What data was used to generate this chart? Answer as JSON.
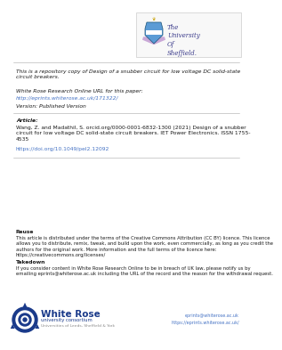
{
  "bg_color": "#ffffff",
  "border_color": "#cccccc",
  "text_color": "#1a1a1a",
  "link_color": "#4472c4",
  "gray_text": "#555555",
  "title_text": "This is a repository copy of Design of a snubber circuit for low voltage DC solid-state\ncircuit breakers.",
  "wrro_label": "White Rose Research Online URL for this paper:",
  "wrro_url": "http://eprints.whiterose.ac.uk/171322/",
  "version_label": "Version: Published Version",
  "article_label": "Article:",
  "citation_line1": "Wang, Z. and Madathil, S. orcid.org/0000-0001-6832-1300 (2021) Design of a snubber",
  "citation_line2": "circuit for low voltage DC solid-state circuit breakers. IET Power Electronics. ISSN 1755-",
  "citation_line3": "4535",
  "doi": "https://doi.org/10.1049/pel2.12092",
  "reuse_label": "Reuse",
  "reuse_line1": "This article is distributed under the terms of the Creative Commons Attribution (CC BY) licence. This licence",
  "reuse_line2": "allows you to distribute, remix, tweak, and build upon the work, even commercially, as long as you credit the",
  "reuse_line3": "authors for the original work. More information and the full terms of the licence here:",
  "reuse_line4": "https://creativecommons.org/licenses/",
  "takedown_label": "Takedown",
  "takedown_line1": "If you consider content in White Rose Research Online to be in breach of UK law, please notify us by",
  "takedown_line2": "emailing eprints@whiterose.ac.uk including the URL of the record and the reason for the withdrawal request.",
  "email_link": "eprints@whiterose.ac.uk",
  "wrro_link": "https://eprints.whiterose.ac.uk/",
  "divider_color": "#aaaaaa",
  "shield_color": "#5b9bd5",
  "shield_purple": "#7030a0",
  "sheffield_text_color": "#3d3d8c",
  "white_rose_blue": "#1a3a8a",
  "white_rose_text": "White Rose",
  "consortium_text": "university consortium",
  "universities_text": "Universities of Leeds, Sheffield & York"
}
